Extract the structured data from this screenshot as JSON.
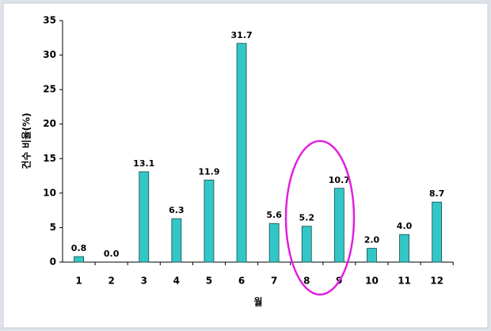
{
  "chart_data": {
    "type": "bar",
    "x_label": "월",
    "y_label": "건수 비율(%)",
    "categories": [
      "1",
      "2",
      "3",
      "4",
      "5",
      "6",
      "7",
      "8",
      "9",
      "10",
      "11",
      "12"
    ],
    "values": [
      0.8,
      0,
      13.1,
      6.3,
      11.9,
      31.7,
      5.6,
      5.2,
      10.7,
      2.0,
      4.0,
      8.7
    ],
    "value_labels": [
      "0.8",
      "0.0",
      "13.1",
      "6.3",
      "11.9",
      "31.7",
      "5.6",
      "5.2",
      "10.7",
      "2.0",
      "4.0",
      "8.7"
    ],
    "color": "#33c6c6",
    "ylim": [
      0,
      35
    ],
    "yticks": [
      0,
      5,
      10,
      15,
      20,
      25,
      30,
      35
    ],
    "grid": false
  }
}
